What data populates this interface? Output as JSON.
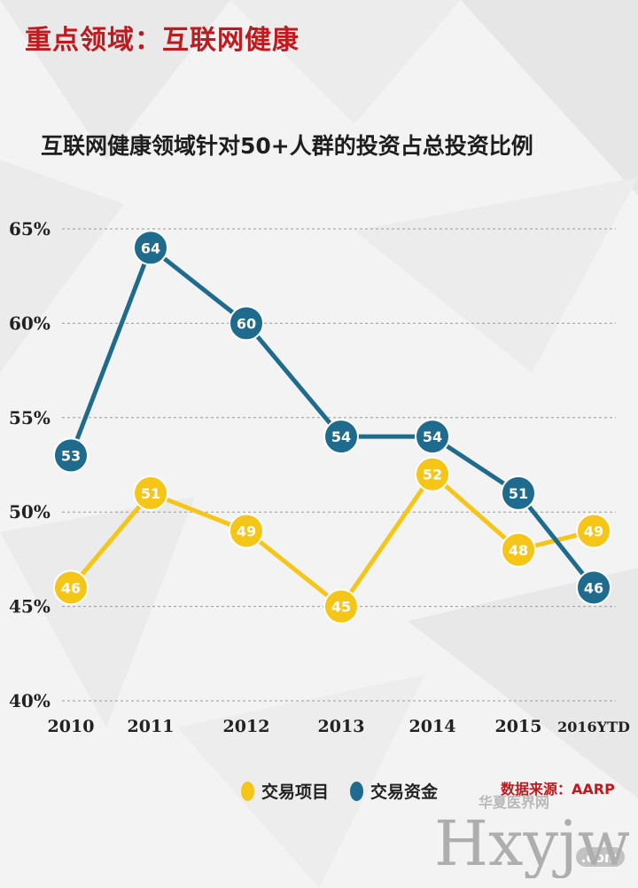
{
  "header": {
    "title": "重点领域：互联网健康"
  },
  "chart_data": {
    "type": "line",
    "title": "互联网健康领域针对50+人群的投资占总投资比例",
    "categories": [
      "2010",
      "2011",
      "2012",
      "2013",
      "2014",
      "2015",
      "2016YTD"
    ],
    "y_ticks": [
      "65%",
      "60%",
      "55%",
      "50%",
      "45%",
      "40%"
    ],
    "ylim": [
      40,
      65
    ],
    "grid": true,
    "legend_position": "bottom",
    "series": [
      {
        "name": "交易项目",
        "color": "#f5c518",
        "values": [
          46,
          51,
          49,
          45,
          52,
          48,
          49
        ]
      },
      {
        "name": "交易资金",
        "color": "#1f6b8e",
        "values": [
          53,
          64,
          60,
          54,
          54,
          51,
          46
        ]
      }
    ]
  },
  "source": {
    "text": "数据来源：AARP"
  },
  "watermark": {
    "brand": "Hxyjw",
    "domain": ".com",
    "cn": "华夏医界网"
  }
}
